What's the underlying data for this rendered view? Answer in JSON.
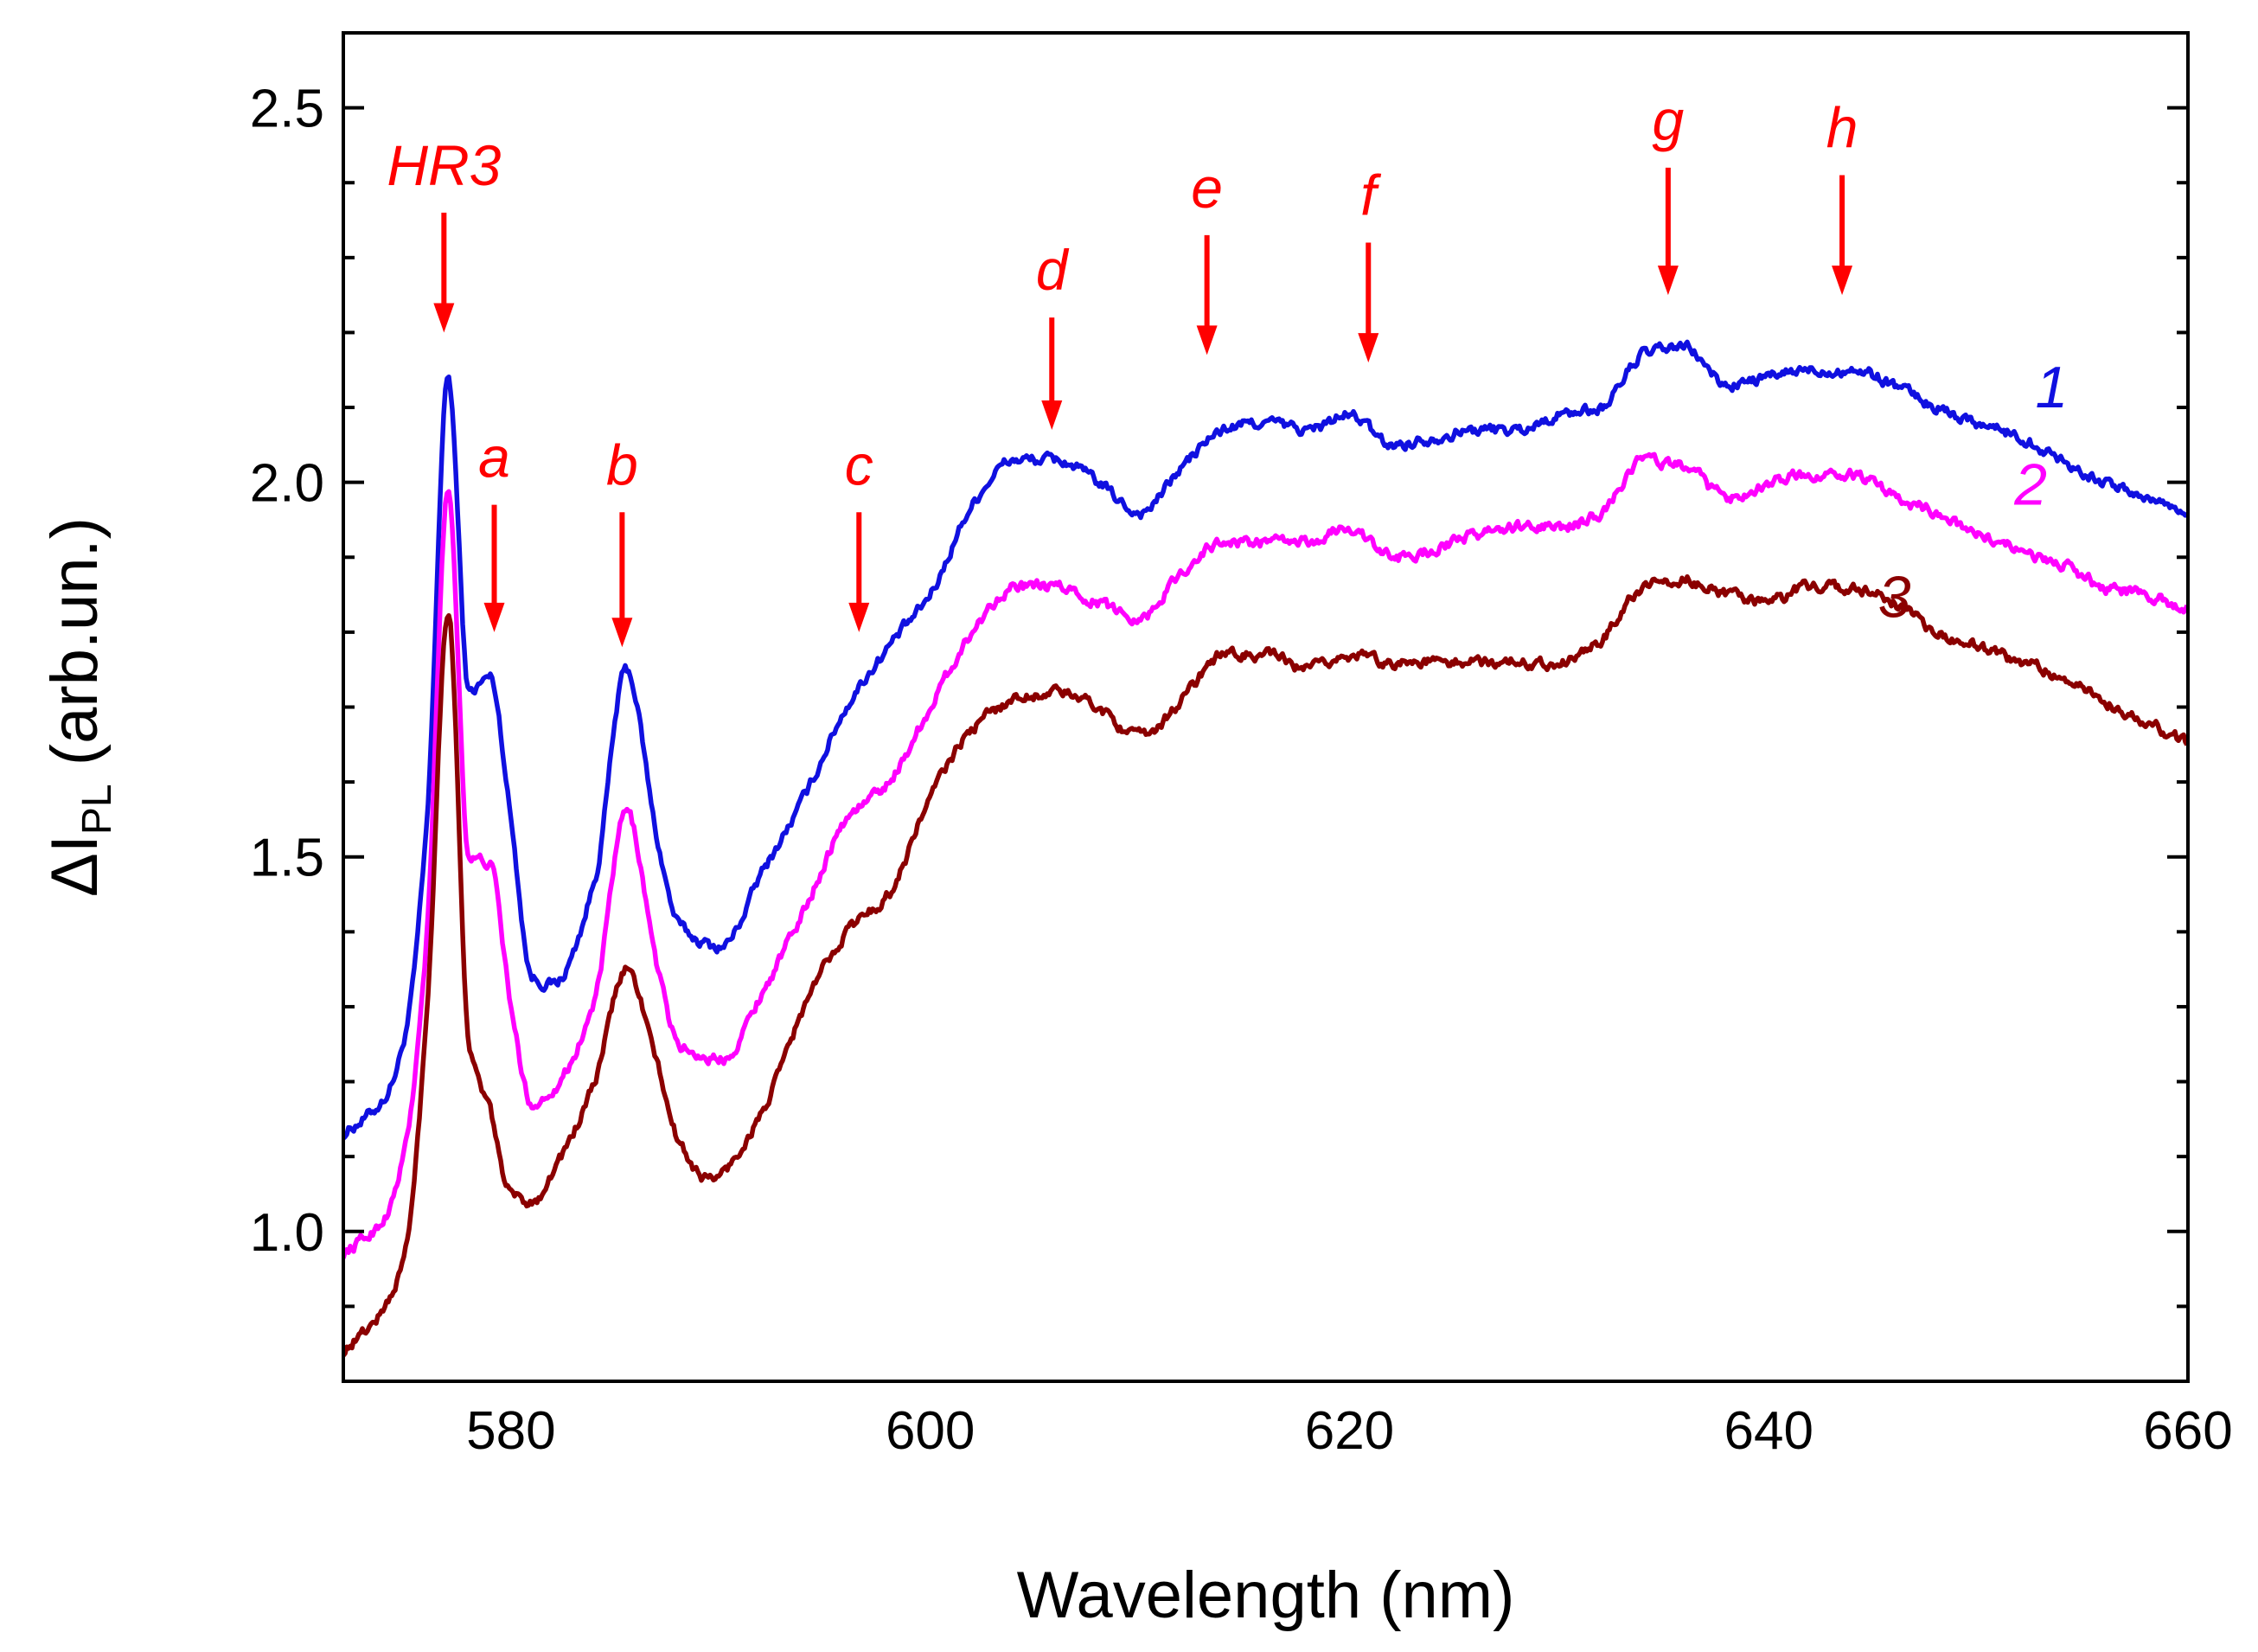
{
  "chart_data": {
    "type": "line",
    "title": "",
    "xlabel": "Wavelength (nm)",
    "ylabel": {
      "prefix": "ΔI",
      "subscript": "PL",
      "suffix": " (arb.un.)"
    },
    "xlim": [
      572,
      660
    ],
    "ylim": [
      0.8,
      2.6
    ],
    "xticks": [
      580,
      600,
      620,
      640,
      660
    ],
    "xtick_labels": [
      "580",
      "600",
      "620",
      "640",
      "660"
    ],
    "xminor_step": 5,
    "yticks": [
      1.0,
      1.5,
      2.0,
      2.5
    ],
    "ytick_labels": [
      "1.0",
      "1.5",
      "2.0",
      "2.5"
    ],
    "yminor_step": 0.1,
    "grid": false,
    "series": [
      {
        "name": "1",
        "color": "#1010e0",
        "x": [
          572,
          574,
          575,
          576,
          577,
          578,
          579,
          580,
          581,
          582,
          584,
          585.5,
          587,
          588,
          590,
          592,
          594,
          596,
          598,
          600,
          602,
          604,
          606,
          608,
          610,
          612,
          614,
          616,
          618,
          620,
          622,
          624,
          626,
          628,
          630,
          632,
          634,
          636,
          638,
          640,
          642,
          644,
          646,
          648,
          650,
          652,
          654,
          656,
          658,
          660
        ],
        "y": [
          1.13,
          1.18,
          1.27,
          1.55,
          2.14,
          1.72,
          1.74,
          1.55,
          1.34,
          1.33,
          1.47,
          1.75,
          1.52,
          1.41,
          1.38,
          1.48,
          1.58,
          1.7,
          1.78,
          1.85,
          1.97,
          2.03,
          2.03,
          2.0,
          1.96,
          2.02,
          2.07,
          2.08,
          2.07,
          2.09,
          2.05,
          2.06,
          2.07,
          2.07,
          2.09,
          2.1,
          2.17,
          2.18,
          2.13,
          2.14,
          2.15,
          2.15,
          2.13,
          2.1,
          2.08,
          2.06,
          2.03,
          2.0,
          1.98,
          1.96
        ]
      },
      {
        "name": "2",
        "color": "#ff00ff",
        "x": [
          572,
          574,
          575,
          576,
          577,
          578,
          579,
          580,
          581,
          582,
          584,
          585.5,
          587,
          588,
          590,
          592,
          594,
          596,
          598,
          600,
          602,
          604,
          606,
          608,
          610,
          612,
          614,
          616,
          618,
          620,
          622,
          624,
          626,
          628,
          630,
          632,
          634,
          636,
          638,
          640,
          642,
          644,
          646,
          648,
          650,
          652,
          654,
          656,
          658,
          660
        ],
        "y": [
          0.97,
          1.02,
          1.12,
          1.4,
          1.99,
          1.5,
          1.49,
          1.3,
          1.17,
          1.19,
          1.31,
          1.56,
          1.35,
          1.25,
          1.23,
          1.32,
          1.43,
          1.55,
          1.6,
          1.7,
          1.8,
          1.86,
          1.86,
          1.84,
          1.82,
          1.88,
          1.92,
          1.92,
          1.92,
          1.94,
          1.9,
          1.91,
          1.93,
          1.94,
          1.94,
          1.96,
          2.03,
          2.02,
          1.98,
          2.0,
          2.01,
          2.01,
          1.98,
          1.96,
          1.93,
          1.91,
          1.89,
          1.86,
          1.85,
          1.83
        ]
      },
      {
        "name": "3",
        "color": "#8b0000",
        "x": [
          572,
          574,
          575,
          576,
          577,
          578,
          579,
          580,
          581,
          582,
          584,
          585.5,
          587,
          588,
          589.5,
          592,
          594,
          596,
          598,
          600,
          602,
          604,
          606,
          608,
          610,
          612,
          614,
          616,
          618,
          620,
          622,
          624,
          626,
          628,
          630,
          632,
          634,
          636,
          638,
          640,
          642,
          644,
          646,
          648,
          650,
          652,
          654,
          656,
          658,
          660
        ],
        "y": [
          0.84,
          0.9,
          0.98,
          1.3,
          1.83,
          1.25,
          1.16,
          1.05,
          1.04,
          1.08,
          1.2,
          1.35,
          1.22,
          1.12,
          1.07,
          1.16,
          1.3,
          1.4,
          1.45,
          1.58,
          1.67,
          1.71,
          1.72,
          1.7,
          1.66,
          1.71,
          1.77,
          1.77,
          1.75,
          1.77,
          1.76,
          1.76,
          1.76,
          1.76,
          1.76,
          1.79,
          1.86,
          1.87,
          1.85,
          1.84,
          1.86,
          1.86,
          1.84,
          1.8,
          1.78,
          1.76,
          1.74,
          1.71,
          1.68,
          1.65
        ]
      }
    ],
    "annotations": [
      {
        "label": "HR3",
        "x": 576.8,
        "y_top": 2.36,
        "y_tip": 2.2
      },
      {
        "label": "a",
        "x": 579.2,
        "y_top": 1.97,
        "y_tip": 1.8
      },
      {
        "label": "b",
        "x": 585.3,
        "y_top": 1.96,
        "y_tip": 1.78
      },
      {
        "label": "c",
        "x": 596.6,
        "y_top": 1.96,
        "y_tip": 1.8
      },
      {
        "label": "d",
        "x": 605.8,
        "y_top": 2.22,
        "y_tip": 2.07
      },
      {
        "label": "e",
        "x": 613.2,
        "y_top": 2.33,
        "y_tip": 2.17
      },
      {
        "label": "f",
        "x": 620.9,
        "y_top": 2.32,
        "y_tip": 2.16
      },
      {
        "label": "g",
        "x": 635.2,
        "y_top": 2.42,
        "y_tip": 2.25
      },
      {
        "label": "h",
        "x": 643.5,
        "y_top": 2.41,
        "y_tip": 2.25
      }
    ],
    "annotation_color": "#ff0000",
    "curve_labels": [
      {
        "label": "1",
        "x": 653.5,
        "y": 2.1,
        "color": "#1010e0"
      },
      {
        "label": "2",
        "x": 652.5,
        "y": 1.97,
        "color": "#ff00ff"
      },
      {
        "label": "3",
        "x": 646,
        "y": 1.82,
        "color": "#8b0000"
      }
    ]
  }
}
